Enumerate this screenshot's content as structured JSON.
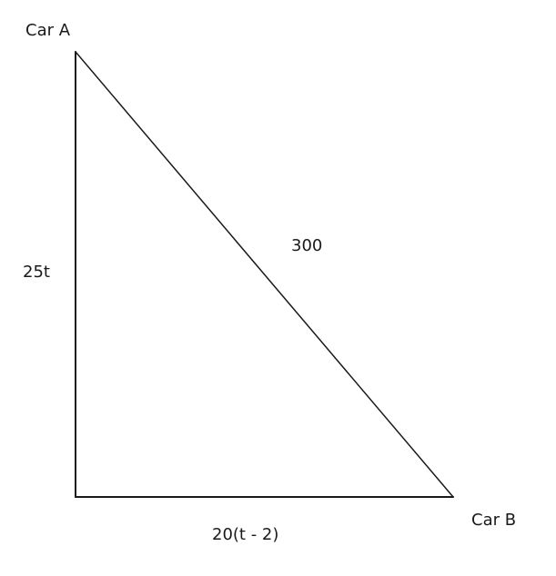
{
  "diagram": {
    "vertices": {
      "car_a": "Car A",
      "car_b": "Car B"
    },
    "sides": {
      "vertical": "25t",
      "hypotenuse": "300",
      "horizontal": "20(t - 2)"
    },
    "colors": {
      "line": "#1a1a1a",
      "text": "#1a1a1a",
      "background": "#ffffff"
    }
  }
}
